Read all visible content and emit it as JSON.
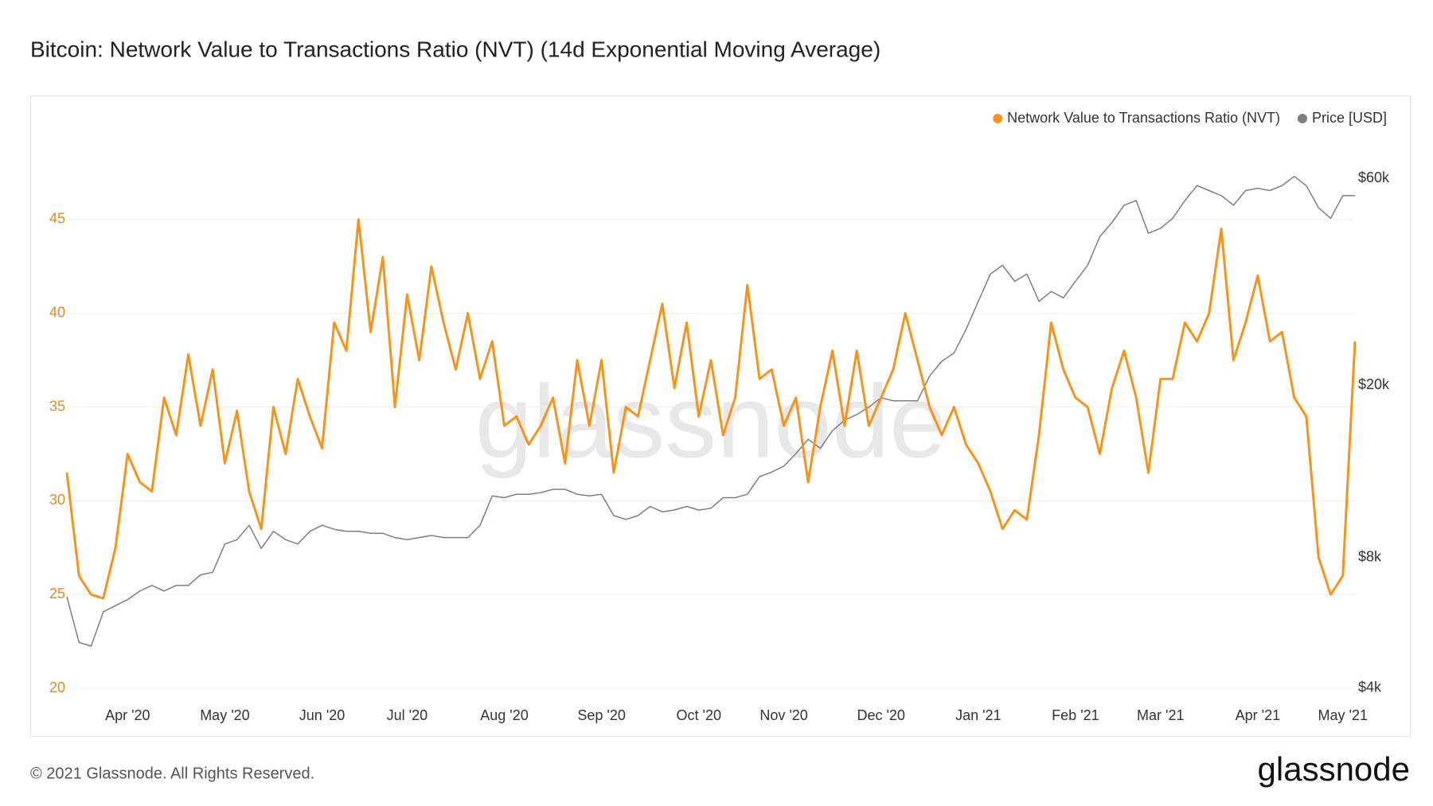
{
  "chart_data": {
    "type": "line",
    "title": "Bitcoin: Network Value to Transactions Ratio (NVT) (14d Exponential Moving Average)",
    "categories": [
      null,
      null,
      null,
      null,
      null,
      "Apr '20",
      null,
      null,
      null,
      null,
      null,
      null,
      null,
      "May '20",
      null,
      null,
      null,
      null,
      null,
      null,
      null,
      "Jun '20",
      null,
      null,
      null,
      null,
      null,
      null,
      "Jul '20",
      null,
      null,
      null,
      null,
      null,
      null,
      null,
      "Aug '20",
      null,
      null,
      null,
      null,
      null,
      null,
      null,
      "Sep '20",
      null,
      null,
      null,
      null,
      null,
      null,
      null,
      "Oct '20",
      null,
      null,
      null,
      null,
      null,
      null,
      "Nov '20",
      null,
      null,
      null,
      null,
      null,
      null,
      null,
      "Dec '20",
      null,
      null,
      null,
      null,
      null,
      null,
      null,
      "Jan '21",
      null,
      null,
      null,
      null,
      null,
      null,
      null,
      "Feb '21",
      null,
      null,
      null,
      null,
      null,
      null,
      "Mar '21",
      null,
      null,
      null,
      null,
      null,
      null,
      null,
      "Apr '21",
      null,
      null,
      null,
      null,
      null,
      null,
      "May '21",
      null
    ],
    "series": [
      {
        "name": "Network Value to Transactions Ratio (NVT)",
        "color": "#f7931a",
        "axis": "y",
        "values": [
          31.5,
          26,
          25,
          24.8,
          27.5,
          32.5,
          31,
          30.5,
          35.5,
          33.5,
          37.8,
          34,
          37,
          32,
          34.8,
          30.5,
          28.5,
          35,
          32.5,
          36.5,
          34.5,
          32.8,
          39.5,
          38,
          45,
          39,
          43,
          35,
          41,
          37.5,
          42.5,
          39.5,
          37,
          40,
          36.5,
          38.5,
          34,
          34.5,
          33,
          34,
          35.5,
          32,
          37.5,
          34,
          37.5,
          31.5,
          35,
          34.5,
          37.5,
          40.5,
          36,
          39.5,
          34.5,
          37.5,
          33.5,
          35.5,
          41.5,
          36.5,
          37,
          34,
          35.5,
          31,
          35,
          38,
          34,
          38,
          34,
          35.5,
          37,
          40,
          37.5,
          35,
          33.5,
          35,
          33,
          32,
          30.5,
          28.5,
          29.5,
          29,
          33.5,
          39.5,
          37,
          35.5,
          35,
          32.5,
          36,
          38,
          35.5,
          31.5,
          36.5,
          36.5,
          39.5,
          38.5,
          40,
          44.5,
          37.5,
          39.5,
          42,
          38.5,
          39,
          35.5,
          34.5,
          27,
          25,
          26,
          38.5
        ]
      },
      {
        "name": "Price [USD]",
        "color": "#7f7f7f",
        "axis": "y2",
        "values": [
          6500,
          5100,
          5000,
          6000,
          6200,
          6400,
          6700,
          6900,
          6700,
          6900,
          6900,
          7300,
          7400,
          8600,
          8800,
          9500,
          8400,
          9200,
          8800,
          8600,
          9200,
          9500,
          9300,
          9200,
          9200,
          9100,
          9100,
          8900,
          8800,
          8900,
          9000,
          8900,
          8900,
          8900,
          9500,
          11100,
          11000,
          11200,
          11200,
          11300,
          11500,
          11500,
          11200,
          11100,
          11200,
          10000,
          9800,
          10000,
          10500,
          10200,
          10300,
          10500,
          10300,
          10400,
          11000,
          11000,
          11200,
          12300,
          12600,
          13000,
          13900,
          15000,
          14300,
          15700,
          16600,
          17100,
          17800,
          18700,
          18400,
          18400,
          18400,
          21000,
          22700,
          23700,
          26900,
          31200,
          36100,
          37800,
          34700,
          36100,
          31200,
          32900,
          31800,
          34700,
          37800,
          44000,
          47400,
          52000,
          53300,
          44800,
          46000,
          48500,
          53300,
          57700,
          56200,
          54700,
          52000,
          56200,
          56900,
          56200,
          57700,
          60600,
          57700,
          51300,
          48500,
          54700,
          54700
        ]
      }
    ],
    "ylim": [
      19.5,
      49.7
    ],
    "yticks": [
      20,
      25,
      30,
      35,
      40,
      45
    ],
    "y2lim": [
      3800,
      77000
    ],
    "y2scale": "log",
    "y2ticks": [
      {
        "value": 4000,
        "label": "$4k"
      },
      {
        "value": 8000,
        "label": "$8k"
      },
      {
        "value": 20000,
        "label": "$20k"
      },
      {
        "value": 60000,
        "label": "$60k"
      }
    ],
    "grid": true,
    "legend": "top-right",
    "watermark": "glassnode"
  },
  "footer": "© 2021 Glassnode. All Rights Reserved.",
  "brand": "glassnode"
}
